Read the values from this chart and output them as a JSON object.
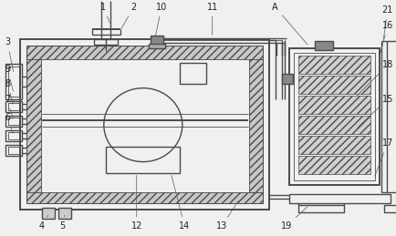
{
  "bg_color": "#f0f0f0",
  "line_color": "#4a4a4a",
  "label_color": "#222222",
  "lw_main": 1.0,
  "lw_thick": 1.4,
  "lw_thin": 0.6,
  "label_fs": 7.0
}
